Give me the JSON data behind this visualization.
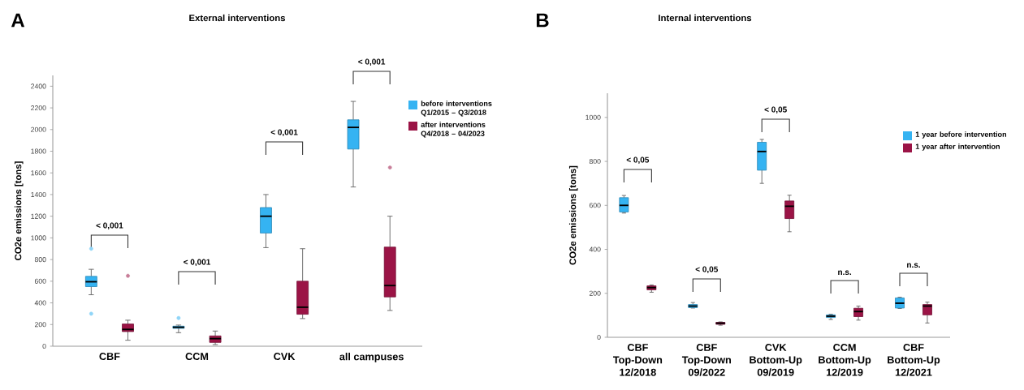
{
  "chart_data": [
    {
      "type": "box",
      "title": "External interventions",
      "ylabel": "CO2e emissions [tons]",
      "categories": [
        "CBF",
        "CCM",
        "CVK",
        "all campuses"
      ],
      "series": [
        {
          "name": "before interventions Q1/2015 – Q3/2018",
          "color": "#35b3f2",
          "boxes": [
            {
              "low": 475,
              "q1": 550,
              "median": 595,
              "q3": 645,
              "high": 710,
              "outliers": [
                900,
                300
              ]
            },
            {
              "low": 125,
              "q1": 165,
              "median": 175,
              "q3": 185,
              "high": 195,
              "outliers": [
                260
              ]
            },
            {
              "low": 910,
              "q1": 1045,
              "median": 1200,
              "q3": 1280,
              "high": 1400
            },
            {
              "low": 1470,
              "q1": 1820,
              "median": 2020,
              "q3": 2090,
              "high": 2260
            }
          ]
        },
        {
          "name": "after interventions Q4/2018 – 04/2023",
          "color": "#9b1446",
          "boxes": [
            {
              "low": 55,
              "q1": 135,
              "median": 155,
              "q3": 205,
              "high": 240,
              "outliers": [
                650
              ]
            },
            {
              "low": 15,
              "q1": 35,
              "median": 70,
              "q3": 95,
              "high": 140
            },
            {
              "low": 255,
              "q1": 295,
              "median": 360,
              "q3": 600,
              "high": 900
            },
            {
              "low": 330,
              "q1": 455,
              "median": 560,
              "q3": 915,
              "high": 1200,
              "outliers": [
                1650
              ]
            }
          ]
        }
      ],
      "ylim": [
        0,
        2500
      ],
      "yticks": [
        0,
        200,
        400,
        600,
        800,
        1000,
        1200,
        1400,
        1600,
        1800,
        2000,
        2200,
        2400
      ],
      "legend": "top right",
      "annotations": [
        "A",
        "< 0,001",
        "< 0,001",
        "< 0,001",
        "< 0,001"
      ]
    },
    {
      "type": "box",
      "title": "Internal interventions",
      "ylabel": "CO2e emissions [tons]",
      "categories": [
        "CBF Top-Down 12/2018",
        "CBF Top-Down 09/2022",
        "CVK Bottom-Up 09/2019",
        "CCM Bottom-Up 12/2019",
        "CBF Bottom-Up 12/2021"
      ],
      "series": [
        {
          "name": "1 year before intervention",
          "color": "#35b3f2",
          "boxes": [
            {
              "low": 565,
              "q1": 570,
              "median": 600,
              "q3": 635,
              "high": 645
            },
            {
              "low": 133,
              "q1": 135,
              "median": 142,
              "q3": 149,
              "high": 158
            },
            {
              "low": 700,
              "q1": 760,
              "median": 845,
              "q3": 887,
              "high": 900
            },
            {
              "low": 81,
              "q1": 90,
              "median": 96,
              "q3": 102,
              "high": 105
            },
            {
              "low": 131,
              "q1": 133,
              "median": 155,
              "q3": 179,
              "high": 182
            }
          ]
        },
        {
          "name": "1 year after intervention",
          "color": "#9b1446",
          "boxes": [
            {
              "low": 205,
              "q1": 216,
              "median": 226,
              "q3": 234,
              "high": 238
            },
            {
              "low": 55,
              "q1": 59,
              "median": 64,
              "q3": 68,
              "high": 70
            },
            {
              "low": 480,
              "q1": 540,
              "median": 596,
              "q3": 620,
              "high": 646
            },
            {
              "low": 78,
              "q1": 94,
              "median": 117,
              "q3": 132,
              "high": 142
            },
            {
              "low": 65,
              "q1": 102,
              "median": 142,
              "q3": 149,
              "high": 160
            }
          ]
        }
      ],
      "ylim": [
        0,
        1110
      ],
      "yticks": [
        0,
        200,
        400,
        600,
        800,
        1000
      ],
      "legend": "top right",
      "annotations": [
        "B",
        "< 0,05",
        "< 0,05",
        "< 0,05",
        "n.s.",
        "n.s."
      ]
    }
  ]
}
